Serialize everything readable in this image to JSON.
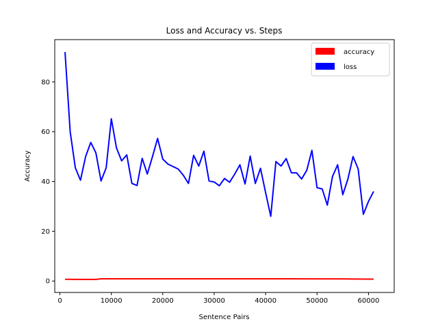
{
  "chart_data": {
    "type": "line",
    "title": "Loss and Accuracy vs. Steps",
    "xlabel": "Sentence Pairs",
    "ylabel": "Accuracy",
    "xlim": [
      -1000,
      65000
    ],
    "ylim": [
      -4.6,
      97
    ],
    "xticks": [
      0,
      10000,
      20000,
      30000,
      40000,
      50000,
      60000
    ],
    "yticks": [
      0,
      20,
      40,
      60,
      80
    ],
    "legend_position": "top-right",
    "grid": false,
    "series": [
      {
        "name": "accuracy",
        "color": "#ff0000",
        "x": [
          1000,
          2000,
          3000,
          4000,
          5000,
          6000,
          7000,
          8000,
          9000,
          10000,
          15000,
          20000,
          25000,
          30000,
          35000,
          40000,
          45000,
          50000,
          55000,
          60000,
          61000
        ],
        "y": [
          0.7,
          0.7,
          0.65,
          0.65,
          0.65,
          0.65,
          0.65,
          0.9,
          0.9,
          0.9,
          0.9,
          0.9,
          0.9,
          0.9,
          0.9,
          0.9,
          0.9,
          0.85,
          0.85,
          0.75,
          0.75
        ]
      },
      {
        "name": "loss",
        "color": "#0000ff",
        "x": [
          1000,
          2000,
          3000,
          4000,
          5000,
          6000,
          7000,
          8000,
          9000,
          10000,
          11000,
          12000,
          13000,
          14000,
          15000,
          16000,
          17000,
          18000,
          19000,
          20000,
          21000,
          22000,
          23000,
          24000,
          25000,
          26000,
          27000,
          28000,
          29000,
          30000,
          31000,
          32000,
          33000,
          34000,
          35000,
          36000,
          37000,
          38000,
          39000,
          40000,
          41000,
          42000,
          43000,
          44000,
          45000,
          46000,
          47000,
          48000,
          49000,
          50000,
          51000,
          52000,
          53000,
          54000,
          55000,
          56000,
          57000,
          58000,
          59000,
          60000,
          61000
        ],
        "y": [
          92,
          60,
          45.5,
          40.5,
          50,
          55.7,
          51.5,
          40.2,
          45.5,
          65.2,
          53.5,
          48.3,
          50.7,
          39.2,
          38.4,
          49.3,
          43,
          50,
          57.3,
          49,
          47,
          46,
          45,
          42.5,
          39.2,
          50.5,
          46.2,
          52.2,
          40.2,
          39.8,
          38.3,
          41.2,
          39.7,
          43,
          46.7,
          39,
          50.2,
          39.2,
          45.3,
          35.5,
          26,
          48,
          46.2,
          49.2,
          43.5,
          43.5,
          41,
          44.5,
          52.5,
          37.5,
          37,
          30.5,
          42,
          46.7,
          34.7,
          41,
          50,
          45,
          26.8,
          32,
          36
        ]
      }
    ]
  }
}
